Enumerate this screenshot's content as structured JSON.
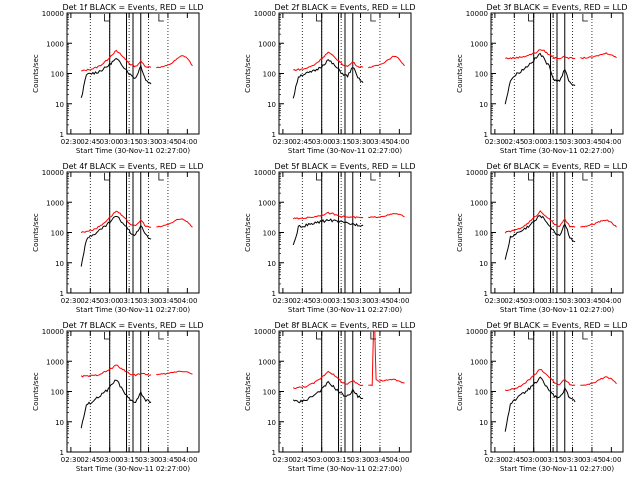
{
  "figure": {
    "xlabel": "Start Time (30-Nov-11 02:27:00)",
    "ylabel": "Counts/sec",
    "x_ticks": [
      "02:30",
      "02:45",
      "03:00",
      "03:15",
      "03:30",
      "03:45",
      "04:00"
    ],
    "y_ticks": [
      "1",
      "10",
      "100",
      "1000",
      "10000"
    ],
    "colors": {
      "events": "#000000",
      "lld": "#ff0000"
    }
  },
  "chart_data": [
    {
      "type": "line",
      "title": "Det 1f BLACK = Events, RED = LLD",
      "xlabel": "Start Time (30-Nov-11 02:27:00)",
      "ylabel": "Counts/sec",
      "x": [
        "02:38",
        "02:42",
        "02:46",
        "02:50",
        "02:54",
        "02:58",
        "03:02",
        "03:05",
        "03:08",
        "03:12",
        "03:16",
        "03:20",
        "03:24",
        "03:28",
        "03:32"
      ],
      "series": [
        {
          "name": "BLACK = Events",
          "values": [
            15,
            90,
            100,
            110,
            130,
            170,
            240,
            300,
            230,
            150,
            90,
            70,
            180,
            60,
            45
          ]
        },
        {
          "name": "RED = LLD",
          "values": [
            120,
            130,
            140,
            160,
            200,
            280,
            430,
            560,
            440,
            300,
            200,
            170,
            250,
            170,
            160
          ]
        }
      ],
      "lld_extension": {
        "x": [
          "03:36",
          "03:40",
          "03:44",
          "03:48",
          "03:52",
          "03:56",
          "04:00",
          "04:04"
        ],
        "values": [
          160,
          165,
          180,
          220,
          300,
          400,
          320,
          180
        ]
      },
      "vlines": [
        "03:00",
        "03:13",
        "03:18",
        "03:24"
      ],
      "ylim": [
        1,
        10000
      ],
      "log_y": true
    },
    {
      "type": "line",
      "title": "Det 2f BLACK = Events, RED = LLD",
      "xlabel": "Start Time (30-Nov-11 02:27:00)",
      "ylabel": "Counts/sec",
      "x": [
        "02:38",
        "02:42",
        "02:46",
        "02:50",
        "02:54",
        "02:58",
        "03:02",
        "03:05",
        "03:08",
        "03:12",
        "03:16",
        "03:20",
        "03:24",
        "03:28",
        "03:32"
      ],
      "series": [
        {
          "name": "BLACK = Events",
          "values": [
            15,
            80,
            95,
            105,
            120,
            150,
            210,
            280,
            220,
            150,
            100,
            80,
            170,
            70,
            50
          ]
        },
        {
          "name": "RED = LLD",
          "values": [
            130,
            135,
            140,
            160,
            190,
            260,
            380,
            500,
            400,
            290,
            200,
            170,
            240,
            170,
            160
          ]
        }
      ],
      "lld_extension": {
        "x": [
          "03:36",
          "03:40",
          "03:44",
          "03:48",
          "03:52",
          "03:56",
          "04:00",
          "04:04"
        ],
        "values": [
          160,
          170,
          190,
          230,
          300,
          380,
          300,
          180
        ]
      },
      "vlines": [
        "03:00",
        "03:13",
        "03:18",
        "03:24"
      ],
      "ylim": [
        1,
        10000
      ],
      "log_y": true
    },
    {
      "type": "line",
      "title": "Det 3f BLACK = Events, RED = LLD",
      "xlabel": "Start Time (30-Nov-11 02:27:00)",
      "ylabel": "Counts/sec",
      "x": [
        "02:38",
        "02:42",
        "02:46",
        "02:50",
        "02:54",
        "02:58",
        "03:02",
        "03:05",
        "03:08",
        "03:12",
        "03:16",
        "03:20",
        "03:24",
        "03:28",
        "03:32"
      ],
      "series": [
        {
          "name": "BLACK = Events",
          "values": [
            10,
            60,
            90,
            120,
            160,
            230,
            330,
            460,
            300,
            170,
            60,
            60,
            130,
            50,
            40
          ]
        },
        {
          "name": "RED = LLD",
          "values": [
            320,
            320,
            330,
            350,
            380,
            430,
            500,
            620,
            560,
            420,
            330,
            320,
            360,
            320,
            320
          ]
        }
      ],
      "lld_extension": {
        "x": [
          "03:36",
          "03:40",
          "03:44",
          "03:48",
          "03:52",
          "03:56",
          "04:00",
          "04:04"
        ],
        "values": [
          320,
          330,
          340,
          370,
          420,
          470,
          420,
          330
        ]
      },
      "vlines": [
        "03:00",
        "03:13",
        "03:18",
        "03:24"
      ],
      "ylim": [
        1,
        10000
      ],
      "log_y": true
    },
    {
      "type": "line",
      "title": "Det 4f BLACK = Events, RED = LLD",
      "xlabel": "Start Time (30-Nov-11 02:27:00)",
      "ylabel": "Counts/sec",
      "x": [
        "02:38",
        "02:42",
        "02:46",
        "02:50",
        "02:54",
        "02:58",
        "03:02",
        "03:05",
        "03:08",
        "03:12",
        "03:16",
        "03:20",
        "03:24",
        "03:28",
        "03:32"
      ],
      "series": [
        {
          "name": "BLACK = Events",
          "values": [
            8,
            60,
            80,
            100,
            130,
            180,
            260,
            350,
            260,
            170,
            100,
            80,
            180,
            80,
            60
          ]
        },
        {
          "name": "RED = LLD",
          "values": [
            100,
            110,
            120,
            140,
            180,
            260,
            380,
            520,
            410,
            280,
            190,
            160,
            260,
            160,
            150
          ]
        }
      ],
      "lld_extension": {
        "x": [
          "03:36",
          "03:40",
          "03:44",
          "03:48",
          "03:52",
          "03:56",
          "04:00",
          "04:04"
        ],
        "values": [
          150,
          160,
          180,
          210,
          260,
          280,
          230,
          150
        ]
      },
      "vlines": [
        "03:00",
        "03:13",
        "03:18",
        "03:24"
      ],
      "ylim": [
        1,
        10000
      ],
      "log_y": true
    },
    {
      "type": "line",
      "title": "Det 5f BLACK = Events, RED = LLD",
      "xlabel": "Start Time (30-Nov-11 02:27:00)",
      "ylabel": "Counts/sec",
      "x": [
        "02:38",
        "02:42",
        "02:46",
        "02:50",
        "02:54",
        "02:58",
        "03:02",
        "03:05",
        "03:08",
        "03:12",
        "03:16",
        "03:20",
        "03:24",
        "03:28",
        "03:32"
      ],
      "series": [
        {
          "name": "BLACK = Events",
          "values": [
            35,
            150,
            165,
            180,
            200,
            220,
            240,
            260,
            250,
            230,
            210,
            200,
            190,
            180,
            175
          ]
        },
        {
          "name": "RED = LLD",
          "values": [
            290,
            290,
            300,
            310,
            330,
            360,
            400,
            440,
            420,
            380,
            340,
            320,
            320,
            310,
            310
          ]
        }
      ],
      "lld_extension": {
        "x": [
          "03:36",
          "03:40",
          "03:44",
          "03:48",
          "03:52",
          "03:56",
          "04:00",
          "04:04"
        ],
        "values": [
          310,
          320,
          330,
          350,
          380,
          420,
          400,
          330
        ]
      },
      "vlines": [
        "03:00",
        "03:13",
        "03:18",
        "03:24"
      ],
      "ylim": [
        1,
        10000
      ],
      "log_y": true
    },
    {
      "type": "line",
      "title": "Det 6f BLACK = Events, RED = LLD",
      "xlabel": "Start Time (30-Nov-11 02:27:00)",
      "ylabel": "Counts/sec",
      "x": [
        "02:38",
        "02:42",
        "02:46",
        "02:50",
        "02:54",
        "02:58",
        "03:02",
        "03:05",
        "03:08",
        "03:12",
        "03:16",
        "03:20",
        "03:24",
        "03:28",
        "03:32"
      ],
      "series": [
        {
          "name": "BLACK = Events",
          "values": [
            12,
            70,
            90,
            110,
            140,
            190,
            270,
            380,
            280,
            180,
            100,
            80,
            200,
            70,
            50
          ]
        },
        {
          "name": "RED = LLD",
          "values": [
            100,
            110,
            120,
            140,
            180,
            250,
            360,
            500,
            400,
            280,
            190,
            160,
            270,
            160,
            150
          ]
        }
      ],
      "lld_extension": {
        "x": [
          "03:36",
          "03:40",
          "03:44",
          "03:48",
          "03:52",
          "03:56",
          "04:00",
          "04:04"
        ],
        "values": [
          150,
          160,
          175,
          200,
          240,
          260,
          220,
          150
        ]
      },
      "vlines": [
        "03:00",
        "03:13",
        "03:18",
        "03:24"
      ],
      "ylim": [
        1,
        10000
      ],
      "log_y": true
    },
    {
      "type": "line",
      "title": "Det 7f BLACK = Events, RED = LLD",
      "xlabel": "Start Time (30-Nov-11 02:27:00)",
      "ylabel": "Counts/sec",
      "x": [
        "02:38",
        "02:42",
        "02:46",
        "02:50",
        "02:54",
        "02:58",
        "03:02",
        "03:05",
        "03:08",
        "03:12",
        "03:16",
        "03:20",
        "03:24",
        "03:28",
        "03:32"
      ],
      "series": [
        {
          "name": "BLACK = Events",
          "values": [
            6,
            35,
            45,
            60,
            80,
            110,
            170,
            260,
            150,
            80,
            50,
            45,
            90,
            50,
            45
          ]
        },
        {
          "name": "RED = LLD",
          "values": [
            320,
            320,
            330,
            350,
            400,
            480,
            600,
            750,
            620,
            470,
            380,
            350,
            400,
            360,
            360
          ]
        }
      ],
      "lld_extension": {
        "x": [
          "03:36",
          "03:40",
          "03:44",
          "03:48",
          "03:52",
          "03:56",
          "04:00",
          "04:04"
        ],
        "values": [
          360,
          370,
          390,
          420,
          460,
          470,
          440,
          380
        ]
      },
      "vlines": [
        "03:00",
        "03:13",
        "03:18",
        "03:24"
      ],
      "ylim": [
        1,
        10000
      ],
      "log_y": true
    },
    {
      "type": "line",
      "title": "Det 8f BLACK = Events, RED = LLD",
      "xlabel": "Start Time (30-Nov-11 02:27:00)",
      "ylabel": "Counts/sec",
      "x": [
        "02:38",
        "02:42",
        "02:46",
        "02:50",
        "02:54",
        "02:58",
        "03:02",
        "03:05",
        "03:08",
        "03:12",
        "03:16",
        "03:20",
        "03:24",
        "03:28",
        "03:32"
      ],
      "series": [
        {
          "name": "BLACK = Events",
          "values": [
            50,
            45,
            50,
            60,
            75,
            100,
            140,
            200,
            160,
            110,
            80,
            70,
            110,
            70,
            60
          ]
        },
        {
          "name": "RED = LLD",
          "values": [
            130,
            135,
            140,
            160,
            190,
            250,
            350,
            470,
            390,
            280,
            200,
            170,
            230,
            170,
            160
          ]
        }
      ],
      "lld_extension": {
        "x": [
          "03:36",
          "03:39",
          "03:40",
          "03:41",
          "03:42",
          "03:44",
          "03:48",
          "03:52",
          "03:56",
          "04:00",
          "04:04"
        ],
        "values": [
          160,
          165,
          10000,
          10000,
          250,
          220,
          230,
          240,
          250,
          220,
          190
        ]
      },
      "vlines": [
        "03:00",
        "03:13",
        "03:18",
        "03:24"
      ],
      "ylim": [
        1,
        10000
      ],
      "log_y": true
    },
    {
      "type": "line",
      "title": "Det 9f BLACK = Events, RED = LLD",
      "xlabel": "Start Time (30-Nov-11 02:27:00)",
      "ylabel": "Counts/sec",
      "x": [
        "02:38",
        "02:42",
        "02:46",
        "02:50",
        "02:54",
        "02:58",
        "03:02",
        "03:05",
        "03:08",
        "03:12",
        "03:16",
        "03:20",
        "03:24",
        "03:28",
        "03:32"
      ],
      "series": [
        {
          "name": "BLACK = Events",
          "values": [
            5,
            40,
            55,
            75,
            100,
            140,
            200,
            280,
            190,
            110,
            70,
            60,
            120,
            60,
            45
          ]
        },
        {
          "name": "RED = LLD",
          "values": [
            110,
            115,
            125,
            150,
            200,
            280,
            400,
            560,
            440,
            300,
            200,
            170,
            250,
            170,
            160
          ]
        }
      ],
      "lld_extension": {
        "x": [
          "03:36",
          "03:40",
          "03:44",
          "03:48",
          "03:52",
          "03:56",
          "04:00",
          "04:04"
        ],
        "values": [
          160,
          165,
          180,
          210,
          260,
          300,
          260,
          180
        ]
      },
      "vlines": [
        "03:00",
        "03:13",
        "03:18",
        "03:24"
      ],
      "ylim": [
        1,
        10000
      ],
      "log_y": true
    }
  ]
}
